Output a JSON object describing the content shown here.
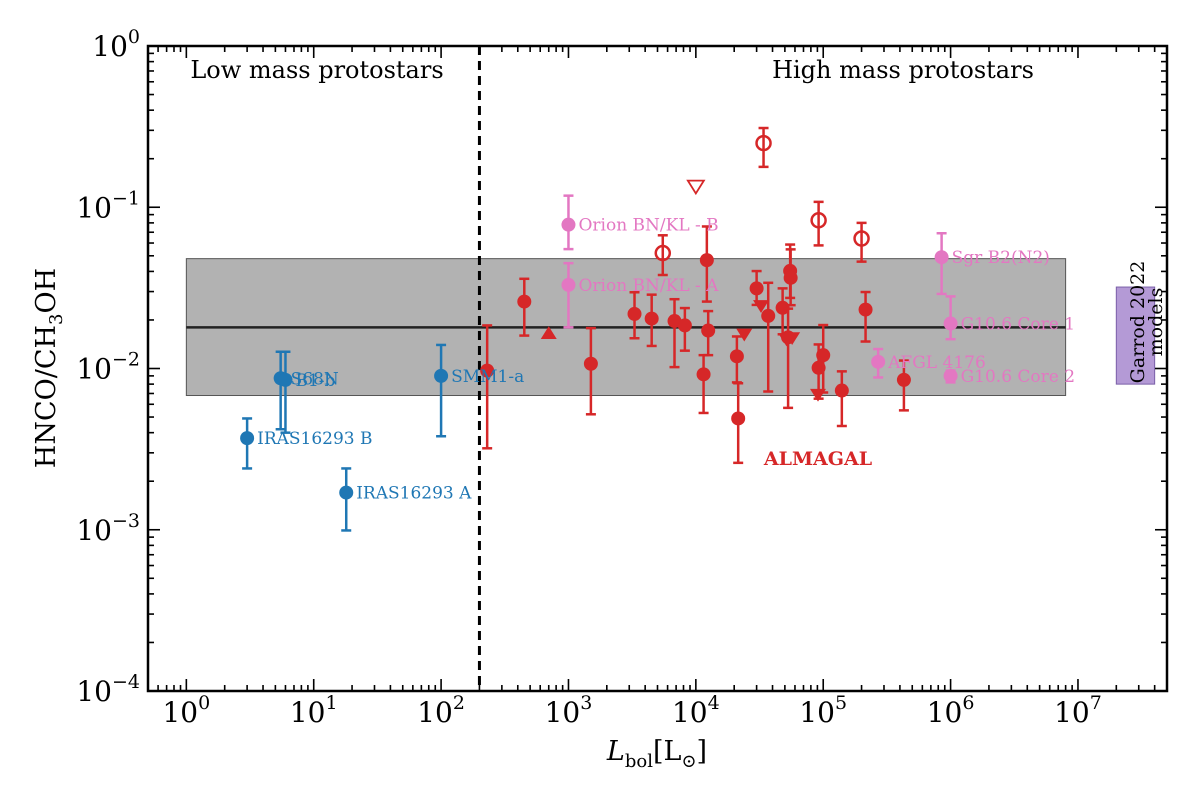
{
  "chart_data": {
    "type": "scatter",
    "xscale": "log",
    "yscale": "log",
    "xlim": [
      0.5,
      50000000
    ],
    "ylim": [
      0.0001,
      1
    ],
    "xlabel_main": "L",
    "xlabel_sub": "bol",
    "xlabel_unit": "[L",
    "xlabel_unit_sub": "⊙",
    "xlabel_unit_close": "]",
    "ylabel_a": "HNCO/CH",
    "ylabel_sub": "3",
    "ylabel_b": "OH",
    "xticks": [
      {
        "base": "10",
        "exp": "0",
        "value": 1
      },
      {
        "base": "10",
        "exp": "1",
        "value": 10
      },
      {
        "base": "10",
        "exp": "2",
        "value": 100
      },
      {
        "base": "10",
        "exp": "3",
        "value": 1000
      },
      {
        "base": "10",
        "exp": "4",
        "value": 10000
      },
      {
        "base": "10",
        "exp": "5",
        "value": 100000
      },
      {
        "base": "10",
        "exp": "6",
        "value": 1000000
      },
      {
        "base": "10",
        "exp": "7",
        "value": 10000000
      }
    ],
    "yticks": [
      {
        "base": "10",
        "exp": "0",
        "value": 1
      },
      {
        "base": "10",
        "exp": "−1",
        "value": 0.1
      },
      {
        "base": "10",
        "exp": "−2",
        "value": 0.01
      },
      {
        "base": "10",
        "exp": "−3",
        "value": 0.001
      },
      {
        "base": "10",
        "exp": "−4",
        "value": 0.0001
      }
    ],
    "divider_x": 200,
    "region_labels": [
      {
        "text": "Low mass protostars",
        "x": 20,
        "y": 0.6
      },
      {
        "text": "High mass protostars",
        "x": 80000,
        "y": 0.6
      }
    ],
    "band": {
      "xmin": 1,
      "xmax": 8000000,
      "ymin": 0.0068,
      "ymax": 0.048,
      "median": 0.018,
      "color": "#b2b2b2"
    },
    "garrod": {
      "label_line1": "Garrod 2022",
      "label_line2": "models",
      "xmin": 20000000,
      "xmax": 40000000,
      "ymin": 0.008,
      "ymax": 0.032,
      "color": "#9b78c8"
    },
    "almagal_label": {
      "text": "ALMAGAL",
      "x": 23000,
      "y": 0.0027
    },
    "colors": {
      "low": "#1f77b4",
      "literature": "#e377c2",
      "almagal": "#d62728"
    },
    "low_mass": [
      {
        "x": 3,
        "y": 0.0037,
        "lo": 0.0024,
        "hi": 0.0049,
        "label": "IRAS16293 B"
      },
      {
        "x": 18,
        "y": 0.0017,
        "lo": 0.00099,
        "hi": 0.0024,
        "label": "IRAS16293 A"
      },
      {
        "x": 5.5,
        "y": 0.0087,
        "lo": 0.0042,
        "hi": 0.0127,
        "label": "S68N"
      },
      {
        "x": 6.0,
        "y": 0.0085,
        "lo": 0.004,
        "hi": 0.0127,
        "label": "B1-b"
      },
      {
        "x": 100,
        "y": 0.009,
        "lo": 0.0038,
        "hi": 0.014,
        "label": "SMM1-a"
      }
    ],
    "literature": [
      {
        "x": 1000,
        "y": 0.078,
        "lo": 0.055,
        "hi": 0.118,
        "label": "Orion BN/KL - B"
      },
      {
        "x": 1000,
        "y": 0.033,
        "lo": 0.018,
        "hi": 0.045,
        "label": "Orion BN/KL - A"
      },
      {
        "x": 850000,
        "y": 0.049,
        "lo": 0.029,
        "hi": 0.069,
        "label": "Sgr B2(N2)"
      },
      {
        "x": 1000000,
        "y": 0.019,
        "lo": 0.0152,
        "hi": 0.028,
        "label": "G10.6 Core 1"
      },
      {
        "x": 1000000,
        "y": 0.009,
        "lo": 0.0082,
        "hi": 0.0097,
        "label": "G10.6 Core 2"
      },
      {
        "x": 270000,
        "y": 0.011,
        "lo": 0.0088,
        "hi": 0.0132,
        "label": "AFGL 4176"
      }
    ],
    "almagal": [
      {
        "x": 230,
        "y": 0.0097,
        "lo": 0.0032,
        "hi": 0.0185
      },
      {
        "x": 450,
        "y": 0.026,
        "lo": 0.016,
        "hi": 0.036
      },
      {
        "x": 1500,
        "y": 0.0107,
        "lo": 0.0052,
        "hi": 0.0178
      },
      {
        "x": 3300,
        "y": 0.0218,
        "lo": 0.0154,
        "hi": 0.0297
      },
      {
        "x": 4500,
        "y": 0.0204,
        "lo": 0.0138,
        "hi": 0.0287
      },
      {
        "x": 6800,
        "y": 0.0197,
        "lo": 0.0102,
        "hi": 0.0269
      },
      {
        "x": 8200,
        "y": 0.0185,
        "lo": 0.0129,
        "hi": 0.0237
      },
      {
        "x": 11500,
        "y": 0.0092,
        "lo": 0.0053,
        "hi": 0.0121
      },
      {
        "x": 12200,
        "y": 0.047,
        "lo": 0.026,
        "hi": 0.076
      },
      {
        "x": 12500,
        "y": 0.0172,
        "lo": 0.0121,
        "hi": 0.0227
      },
      {
        "x": 21000,
        "y": 0.0119,
        "lo": 0.0082,
        "hi": 0.0158
      },
      {
        "x": 21500,
        "y": 0.0049,
        "lo": 0.0026,
        "hi": 0.0081
      },
      {
        "x": 30000,
        "y": 0.0314,
        "lo": 0.0248,
        "hi": 0.0402
      },
      {
        "x": 37000,
        "y": 0.0212,
        "lo": 0.0072,
        "hi": 0.034
      },
      {
        "x": 48000,
        "y": 0.0238,
        "lo": 0.0163,
        "hi": 0.0314
      },
      {
        "x": 53000,
        "y": 0.0156,
        "lo": 0.0057,
        "hi": 0.0235
      },
      {
        "x": 55000,
        "y": 0.0403,
        "lo": 0.0274,
        "hi": 0.0587
      },
      {
        "x": 55500,
        "y": 0.0365,
        "lo": 0.0247,
        "hi": 0.0548
      },
      {
        "x": 92000,
        "y": 0.0101,
        "lo": 0.0065,
        "hi": 0.0141
      },
      {
        "x": 100000,
        "y": 0.0121,
        "lo": 0.0071,
        "hi": 0.0186
      },
      {
        "x": 140000,
        "y": 0.0073,
        "lo": 0.0044,
        "hi": 0.0096
      },
      {
        "x": 215000,
        "y": 0.0232,
        "lo": 0.0147,
        "hi": 0.0298
      },
      {
        "x": 430000,
        "y": 0.0085,
        "lo": 0.0055,
        "hi": 0.0112
      }
    ],
    "almagal_open": [
      {
        "x": 5500,
        "y": 0.052,
        "lo": 0.038,
        "hi": 0.067
      },
      {
        "x": 34000,
        "y": 0.25,
        "lo": 0.178,
        "hi": 0.31
      },
      {
        "x": 92000,
        "y": 0.083,
        "lo": 0.058,
        "hi": 0.108
      },
      {
        "x": 200000,
        "y": 0.064,
        "lo": 0.046,
        "hi": 0.08
      }
    ],
    "almagal_down": [
      {
        "x": 24000,
        "y": 0.0163
      },
      {
        "x": 32500,
        "y": 0.0245
      },
      {
        "x": 51500,
        "y": 0.0152
      },
      {
        "x": 57000,
        "y": 0.0155
      },
      {
        "x": 91000,
        "y": 0.0069
      }
    ],
    "almagal_down_open": [
      {
        "x": 10000,
        "y": 0.135
      }
    ],
    "almagal_up": [
      {
        "x": 700,
        "y": 0.0165
      }
    ]
  }
}
